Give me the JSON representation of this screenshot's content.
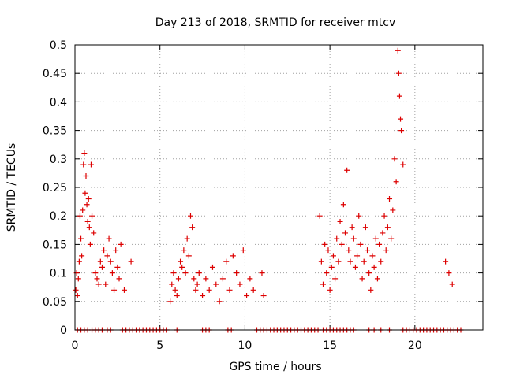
{
  "chart_data": {
    "type": "scatter",
    "title": "Day 213 of 2018, SRMTID for receiver mtcv",
    "xlabel": "GPS time / hours",
    "ylabel": "SRMTID / TECUs",
    "xlim": [
      0,
      24
    ],
    "ylim": [
      0,
      0.5
    ],
    "xticks": [
      {
        "value": 0,
        "label": "0"
      },
      {
        "value": 5,
        "label": "5"
      },
      {
        "value": 10,
        "label": "10"
      },
      {
        "value": 15,
        "label": "15"
      },
      {
        "value": 20,
        "label": "20"
      }
    ],
    "yticks": [
      {
        "value": 0,
        "label": "0"
      },
      {
        "value": 0.05,
        "label": "0.05"
      },
      {
        "value": 0.1,
        "label": "0.1"
      },
      {
        "value": 0.15,
        "label": "0.15"
      },
      {
        "value": 0.2,
        "label": "0.2"
      },
      {
        "value": 0.25,
        "label": "0.25"
      },
      {
        "value": 0.3,
        "label": "0.3"
      },
      {
        "value": 0.35,
        "label": "0.35"
      },
      {
        "value": 0.4,
        "label": "0.4"
      },
      {
        "value": 0.45,
        "label": "0.45"
      },
      {
        "value": 0.5,
        "label": "0.5"
      }
    ],
    "grid": true,
    "marker": "+",
    "color": "#dd0000",
    "series": [
      {
        "name": "SRMTID",
        "points": [
          [
            0.05,
            0.07
          ],
          [
            0.1,
            0.1
          ],
          [
            0.15,
            0.06
          ],
          [
            0.2,
            0.09
          ],
          [
            0.25,
            0.12
          ],
          [
            0.3,
            0.2
          ],
          [
            0.35,
            0.16
          ],
          [
            0.4,
            0.13
          ],
          [
            0.45,
            0.21
          ],
          [
            0.5,
            0.29
          ],
          [
            0.55,
            0.31
          ],
          [
            0.6,
            0.24
          ],
          [
            0.65,
            0.27
          ],
          [
            0.7,
            0.22
          ],
          [
            0.75,
            0.19
          ],
          [
            0.8,
            0.23
          ],
          [
            0.85,
            0.18
          ],
          [
            0.9,
            0.15
          ],
          [
            0.95,
            0.29
          ],
          [
            1.0,
            0.2
          ],
          [
            1.1,
            0.17
          ],
          [
            1.2,
            0.1
          ],
          [
            1.3,
            0.09
          ],
          [
            1.4,
            0.08
          ],
          [
            1.5,
            0.12
          ],
          [
            1.6,
            0.11
          ],
          [
            1.7,
            0.14
          ],
          [
            1.8,
            0.08
          ],
          [
            1.9,
            0.13
          ],
          [
            2.0,
            0.16
          ],
          [
            2.1,
            0.12
          ],
          [
            2.2,
            0.1
          ],
          [
            2.3,
            0.07
          ],
          [
            2.4,
            0.14
          ],
          [
            2.5,
            0.11
          ],
          [
            2.6,
            0.09
          ],
          [
            2.7,
            0.15
          ],
          [
            2.9,
            0.07
          ],
          [
            3.3,
            0.12
          ],
          [
            5.6,
            0.05
          ],
          [
            5.7,
            0.08
          ],
          [
            5.8,
            0.1
          ],
          [
            5.9,
            0.07
          ],
          [
            6.0,
            0.06
          ],
          [
            6.1,
            0.09
          ],
          [
            6.2,
            0.12
          ],
          [
            6.3,
            0.11
          ],
          [
            6.4,
            0.14
          ],
          [
            6.5,
            0.1
          ],
          [
            6.6,
            0.16
          ],
          [
            6.7,
            0.13
          ],
          [
            6.8,
            0.2
          ],
          [
            6.9,
            0.18
          ],
          [
            7.0,
            0.09
          ],
          [
            7.1,
            0.07
          ],
          [
            7.2,
            0.08
          ],
          [
            7.3,
            0.1
          ],
          [
            7.5,
            0.06
          ],
          [
            7.7,
            0.09
          ],
          [
            7.9,
            0.07
          ],
          [
            8.1,
            0.11
          ],
          [
            8.3,
            0.08
          ],
          [
            8.5,
            0.05
          ],
          [
            8.7,
            0.09
          ],
          [
            8.9,
            0.12
          ],
          [
            9.1,
            0.07
          ],
          [
            9.3,
            0.13
          ],
          [
            9.5,
            0.1
          ],
          [
            9.7,
            0.08
          ],
          [
            9.9,
            0.14
          ],
          [
            10.1,
            0.06
          ],
          [
            10.3,
            0.09
          ],
          [
            10.5,
            0.07
          ],
          [
            11.0,
            0.1
          ],
          [
            11.1,
            0.06
          ],
          [
            14.4,
            0.2
          ],
          [
            14.5,
            0.12
          ],
          [
            14.6,
            0.08
          ],
          [
            14.7,
            0.15
          ],
          [
            14.8,
            0.1
          ],
          [
            14.9,
            0.14
          ],
          [
            15.0,
            0.07
          ],
          [
            15.1,
            0.11
          ],
          [
            15.2,
            0.13
          ],
          [
            15.3,
            0.09
          ],
          [
            15.4,
            0.16
          ],
          [
            15.5,
            0.12
          ],
          [
            15.6,
            0.19
          ],
          [
            15.7,
            0.15
          ],
          [
            15.8,
            0.22
          ],
          [
            15.9,
            0.17
          ],
          [
            16.0,
            0.28
          ],
          [
            16.1,
            0.14
          ],
          [
            16.2,
            0.12
          ],
          [
            16.3,
            0.18
          ],
          [
            16.4,
            0.16
          ],
          [
            16.5,
            0.11
          ],
          [
            16.6,
            0.13
          ],
          [
            16.7,
            0.2
          ],
          [
            16.8,
            0.15
          ],
          [
            16.9,
            0.09
          ],
          [
            17.0,
            0.12
          ],
          [
            17.1,
            0.18
          ],
          [
            17.2,
            0.14
          ],
          [
            17.3,
            0.1
          ],
          [
            17.4,
            0.07
          ],
          [
            17.5,
            0.13
          ],
          [
            17.6,
            0.11
          ],
          [
            17.7,
            0.16
          ],
          [
            17.8,
            0.09
          ],
          [
            17.9,
            0.15
          ],
          [
            18.0,
            0.12
          ],
          [
            18.1,
            0.17
          ],
          [
            18.2,
            0.2
          ],
          [
            18.3,
            0.14
          ],
          [
            18.4,
            0.18
          ],
          [
            18.5,
            0.23
          ],
          [
            18.6,
            0.16
          ],
          [
            18.7,
            0.21
          ],
          [
            18.8,
            0.3
          ],
          [
            18.9,
            0.26
          ],
          [
            19.0,
            0.49
          ],
          [
            19.05,
            0.45
          ],
          [
            19.1,
            0.41
          ],
          [
            19.15,
            0.37
          ],
          [
            19.2,
            0.35
          ],
          [
            19.3,
            0.29
          ],
          [
            21.8,
            0.12
          ],
          [
            22.0,
            0.1
          ],
          [
            22.2,
            0.08
          ]
        ]
      },
      {
        "name": "zero",
        "points": [
          [
            0.15,
            0
          ],
          [
            0.35,
            0
          ],
          [
            0.55,
            0
          ],
          [
            0.75,
            0
          ],
          [
            1.0,
            0
          ],
          [
            1.2,
            0
          ],
          [
            1.4,
            0
          ],
          [
            1.6,
            0
          ],
          [
            1.9,
            0
          ],
          [
            2.1,
            0
          ],
          [
            2.8,
            0
          ],
          [
            3.0,
            0
          ],
          [
            3.2,
            0
          ],
          [
            3.4,
            0
          ],
          [
            3.6,
            0
          ],
          [
            3.8,
            0
          ],
          [
            4.0,
            0
          ],
          [
            4.2,
            0
          ],
          [
            4.4,
            0
          ],
          [
            4.6,
            0
          ],
          [
            4.8,
            0
          ],
          [
            5.0,
            0
          ],
          [
            5.2,
            0
          ],
          [
            5.4,
            0
          ],
          [
            6.0,
            0
          ],
          [
            7.5,
            0
          ],
          [
            7.7,
            0
          ],
          [
            7.9,
            0
          ],
          [
            9.0,
            0
          ],
          [
            9.2,
            0
          ],
          [
            10.7,
            0
          ],
          [
            10.9,
            0
          ],
          [
            11.1,
            0
          ],
          [
            11.3,
            0
          ],
          [
            11.5,
            0
          ],
          [
            11.7,
            0
          ],
          [
            11.9,
            0
          ],
          [
            12.1,
            0
          ],
          [
            12.3,
            0
          ],
          [
            12.5,
            0
          ],
          [
            12.7,
            0
          ],
          [
            12.9,
            0
          ],
          [
            13.1,
            0
          ],
          [
            13.3,
            0
          ],
          [
            13.5,
            0
          ],
          [
            13.7,
            0
          ],
          [
            13.9,
            0
          ],
          [
            14.1,
            0
          ],
          [
            14.3,
            0
          ],
          [
            14.6,
            0
          ],
          [
            14.8,
            0
          ],
          [
            15.0,
            0
          ],
          [
            15.2,
            0
          ],
          [
            15.4,
            0
          ],
          [
            15.6,
            0
          ],
          [
            15.8,
            0
          ],
          [
            16.0,
            0
          ],
          [
            16.2,
            0
          ],
          [
            16.4,
            0
          ],
          [
            17.3,
            0
          ],
          [
            17.6,
            0
          ],
          [
            18.0,
            0
          ],
          [
            18.5,
            0
          ],
          [
            19.3,
            0
          ],
          [
            19.5,
            0
          ],
          [
            19.7,
            0
          ],
          [
            19.9,
            0
          ],
          [
            20.1,
            0
          ],
          [
            20.3,
            0
          ],
          [
            20.5,
            0
          ],
          [
            20.7,
            0
          ],
          [
            20.9,
            0
          ],
          [
            21.1,
            0
          ],
          [
            21.3,
            0
          ],
          [
            21.5,
            0
          ],
          [
            21.7,
            0
          ],
          [
            21.9,
            0
          ],
          [
            22.1,
            0
          ],
          [
            22.3,
            0
          ],
          [
            22.5,
            0
          ],
          [
            22.7,
            0
          ]
        ]
      }
    ]
  }
}
